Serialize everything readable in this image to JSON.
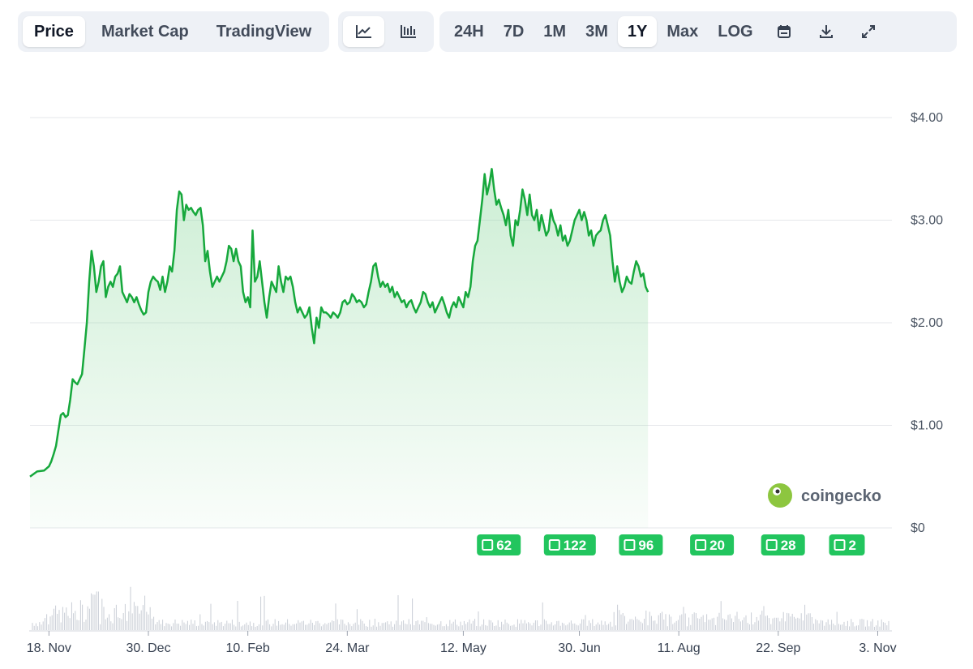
{
  "toolbar": {
    "view_tabs": [
      "Price",
      "Market Cap",
      "TradingView"
    ],
    "active_view": "Price",
    "chart_type_icons": [
      "line-chart-icon",
      "candlestick-chart-icon"
    ],
    "active_chart_type": "line-chart-icon",
    "ranges": [
      "24H",
      "7D",
      "1M",
      "3M",
      "1Y",
      "Max",
      "LOG"
    ],
    "active_range": "1Y",
    "tool_icons": [
      "calendar-icon",
      "download-icon",
      "fullscreen-icon"
    ]
  },
  "watermark": {
    "text": "coingecko",
    "icon": "gecko-logo-icon"
  },
  "colors": {
    "line": "#16a83c",
    "fill": "#8fd9a0",
    "badge": "#22c55e",
    "grid": "#e5e7eb"
  },
  "chart_data": {
    "type": "area",
    "y_ticks": [
      "$0",
      "$1.00",
      "$2.00",
      "$3.00",
      "$4.00"
    ],
    "y_tick_values": [
      0,
      1,
      2,
      3,
      4
    ],
    "ylim": [
      0,
      4
    ],
    "x_tick_labels": [
      "18. Nov",
      "30. Dec",
      "10. Feb",
      "24. Mar",
      "12. May",
      "30. Jun",
      "11. Aug",
      "22. Sep",
      "3. Nov"
    ],
    "x_tick_days": [
      8,
      50,
      92,
      134,
      183,
      232,
      274,
      316,
      358
    ],
    "x_domain_days": [
      0,
      364
    ],
    "price_series": [
      [
        0,
        0.5
      ],
      [
        3,
        0.55
      ],
      [
        6,
        0.56
      ],
      [
        8,
        0.6
      ],
      [
        9,
        0.65
      ],
      [
        10,
        0.72
      ],
      [
        11,
        0.8
      ],
      [
        12,
        0.95
      ],
      [
        13,
        1.1
      ],
      [
        14,
        1.12
      ],
      [
        15,
        1.08
      ],
      [
        16,
        1.1
      ],
      [
        17,
        1.25
      ],
      [
        18,
        1.45
      ],
      [
        19,
        1.42
      ],
      [
        20,
        1.4
      ],
      [
        21,
        1.45
      ],
      [
        22,
        1.5
      ],
      [
        23,
        1.75
      ],
      [
        24,
        2.0
      ],
      [
        25,
        2.4
      ],
      [
        26,
        2.7
      ],
      [
        27,
        2.55
      ],
      [
        28,
        2.3
      ],
      [
        29,
        2.4
      ],
      [
        30,
        2.55
      ],
      [
        31,
        2.6
      ],
      [
        32,
        2.25
      ],
      [
        33,
        2.35
      ],
      [
        34,
        2.4
      ],
      [
        35,
        2.35
      ],
      [
        36,
        2.45
      ],
      [
        37,
        2.48
      ],
      [
        38,
        2.55
      ],
      [
        39,
        2.3
      ],
      [
        40,
        2.25
      ],
      [
        41,
        2.2
      ],
      [
        42,
        2.28
      ],
      [
        43,
        2.25
      ],
      [
        44,
        2.2
      ],
      [
        45,
        2.25
      ],
      [
        46,
        2.18
      ],
      [
        47,
        2.12
      ],
      [
        48,
        2.08
      ],
      [
        49,
        2.1
      ],
      [
        50,
        2.3
      ],
      [
        51,
        2.4
      ],
      [
        52,
        2.45
      ],
      [
        53,
        2.42
      ],
      [
        54,
        2.4
      ],
      [
        55,
        2.32
      ],
      [
        56,
        2.45
      ],
      [
        57,
        2.3
      ],
      [
        58,
        2.4
      ],
      [
        59,
        2.55
      ],
      [
        60,
        2.5
      ],
      [
        61,
        2.7
      ],
      [
        62,
        3.1
      ],
      [
        63,
        3.28
      ],
      [
        64,
        3.25
      ],
      [
        65,
        3.0
      ],
      [
        66,
        3.15
      ],
      [
        67,
        3.1
      ],
      [
        68,
        3.12
      ],
      [
        69,
        3.08
      ],
      [
        70,
        3.05
      ],
      [
        71,
        3.1
      ],
      [
        72,
        3.12
      ],
      [
        73,
        2.95
      ],
      [
        74,
        2.6
      ],
      [
        75,
        2.7
      ],
      [
        76,
        2.5
      ],
      [
        77,
        2.35
      ],
      [
        78,
        2.4
      ],
      [
        79,
        2.45
      ],
      [
        80,
        2.4
      ],
      [
        81,
        2.45
      ],
      [
        82,
        2.5
      ],
      [
        83,
        2.6
      ],
      [
        84,
        2.75
      ],
      [
        85,
        2.72
      ],
      [
        86,
        2.6
      ],
      [
        87,
        2.72
      ],
      [
        88,
        2.6
      ],
      [
        89,
        2.55
      ],
      [
        90,
        2.3
      ],
      [
        91,
        2.2
      ],
      [
        92,
        2.25
      ],
      [
        93,
        2.15
      ],
      [
        94,
        2.9
      ],
      [
        95,
        2.4
      ],
      [
        96,
        2.45
      ],
      [
        97,
        2.6
      ],
      [
        98,
        2.4
      ],
      [
        99,
        2.2
      ],
      [
        100,
        2.05
      ],
      [
        101,
        2.25
      ],
      [
        102,
        2.4
      ],
      [
        103,
        2.35
      ],
      [
        104,
        2.3
      ],
      [
        105,
        2.55
      ],
      [
        106,
        2.4
      ],
      [
        107,
        2.3
      ],
      [
        108,
        2.45
      ],
      [
        109,
        2.42
      ],
      [
        110,
        2.45
      ],
      [
        111,
        2.35
      ],
      [
        112,
        2.2
      ],
      [
        113,
        2.1
      ],
      [
        114,
        2.15
      ],
      [
        115,
        2.1
      ],
      [
        116,
        2.05
      ],
      [
        117,
        2.08
      ],
      [
        118,
        2.15
      ],
      [
        119,
        1.95
      ],
      [
        120,
        1.8
      ],
      [
        121,
        2.05
      ],
      [
        122,
        1.95
      ],
      [
        123,
        2.15
      ],
      [
        124,
        2.1
      ],
      [
        125,
        2.1
      ],
      [
        126,
        2.08
      ],
      [
        127,
        2.05
      ],
      [
        128,
        2.1
      ],
      [
        129,
        2.08
      ],
      [
        130,
        2.05
      ],
      [
        131,
        2.1
      ],
      [
        132,
        2.2
      ],
      [
        133,
        2.22
      ],
      [
        134,
        2.18
      ],
      [
        135,
        2.2
      ],
      [
        136,
        2.28
      ],
      [
        137,
        2.25
      ],
      [
        138,
        2.2
      ],
      [
        139,
        2.22
      ],
      [
        140,
        2.2
      ],
      [
        141,
        2.15
      ],
      [
        142,
        2.18
      ],
      [
        143,
        2.3
      ],
      [
        144,
        2.4
      ],
      [
        145,
        2.55
      ],
      [
        146,
        2.58
      ],
      [
        147,
        2.45
      ],
      [
        148,
        2.35
      ],
      [
        149,
        2.4
      ],
      [
        150,
        2.35
      ],
      [
        151,
        2.38
      ],
      [
        152,
        2.3
      ],
      [
        153,
        2.35
      ],
      [
        154,
        2.25
      ],
      [
        155,
        2.3
      ],
      [
        156,
        2.25
      ],
      [
        157,
        2.2
      ],
      [
        158,
        2.22
      ],
      [
        159,
        2.15
      ],
      [
        160,
        2.2
      ],
      [
        161,
        2.22
      ],
      [
        162,
        2.15
      ],
      [
        163,
        2.1
      ],
      [
        164,
        2.15
      ],
      [
        165,
        2.2
      ],
      [
        166,
        2.3
      ],
      [
        167,
        2.28
      ],
      [
        168,
        2.2
      ],
      [
        169,
        2.15
      ],
      [
        170,
        2.2
      ],
      [
        171,
        2.1
      ],
      [
        172,
        2.15
      ],
      [
        173,
        2.2
      ],
      [
        174,
        2.25
      ],
      [
        175,
        2.18
      ],
      [
        176,
        2.1
      ],
      [
        177,
        2.05
      ],
      [
        178,
        2.15
      ],
      [
        179,
        2.2
      ],
      [
        180,
        2.15
      ],
      [
        181,
        2.25
      ],
      [
        182,
        2.2
      ],
      [
        183,
        2.15
      ],
      [
        184,
        2.3
      ],
      [
        185,
        2.25
      ],
      [
        186,
        2.35
      ],
      [
        187,
        2.6
      ],
      [
        188,
        2.75
      ],
      [
        189,
        2.8
      ],
      [
        190,
        3.0
      ],
      [
        191,
        3.2
      ],
      [
        192,
        3.45
      ],
      [
        193,
        3.25
      ],
      [
        194,
        3.35
      ],
      [
        195,
        3.5
      ],
      [
        196,
        3.3
      ],
      [
        197,
        3.15
      ],
      [
        198,
        3.2
      ],
      [
        199,
        3.12
      ],
      [
        200,
        3.05
      ],
      [
        201,
        2.95
      ],
      [
        202,
        3.1
      ],
      [
        203,
        2.85
      ],
      [
        204,
        2.75
      ],
      [
        205,
        3.0
      ],
      [
        206,
        2.95
      ],
      [
        207,
        3.1
      ],
      [
        208,
        3.3
      ],
      [
        209,
        3.2
      ],
      [
        210,
        3.05
      ],
      [
        211,
        3.25
      ],
      [
        212,
        3.05
      ],
      [
        213,
        3.0
      ],
      [
        214,
        3.1
      ],
      [
        215,
        2.9
      ],
      [
        216,
        3.05
      ],
      [
        217,
        2.95
      ],
      [
        218,
        2.85
      ],
      [
        219,
        2.9
      ],
      [
        220,
        3.1
      ],
      [
        221,
        3.0
      ],
      [
        222,
        2.95
      ],
      [
        223,
        2.85
      ],
      [
        224,
        2.95
      ],
      [
        225,
        2.8
      ],
      [
        226,
        2.85
      ],
      [
        227,
        2.75
      ],
      [
        228,
        2.8
      ],
      [
        229,
        2.9
      ],
      [
        230,
        3.0
      ],
      [
        231,
        3.05
      ],
      [
        232,
        3.1
      ],
      [
        233,
        3.0
      ],
      [
        234,
        3.08
      ],
      [
        235,
        3.0
      ],
      [
        236,
        2.85
      ],
      [
        237,
        2.9
      ],
      [
        238,
        2.75
      ],
      [
        239,
        2.85
      ],
      [
        240,
        2.88
      ],
      [
        241,
        2.9
      ],
      [
        242,
        3.0
      ],
      [
        243,
        3.05
      ],
      [
        244,
        2.95
      ],
      [
        245,
        2.85
      ],
      [
        246,
        2.6
      ],
      [
        247,
        2.4
      ],
      [
        248,
        2.55
      ],
      [
        249,
        2.4
      ],
      [
        250,
        2.3
      ],
      [
        251,
        2.35
      ],
      [
        252,
        2.45
      ],
      [
        253,
        2.4
      ],
      [
        254,
        2.38
      ],
      [
        255,
        2.5
      ],
      [
        256,
        2.6
      ],
      [
        257,
        2.55
      ],
      [
        258,
        2.45
      ],
      [
        259,
        2.48
      ],
      [
        260,
        2.35
      ],
      [
        261,
        2.3
      ]
    ]
  },
  "news_badges": [
    {
      "day": 198,
      "count": "62"
    },
    {
      "day": 228,
      "count": "122"
    },
    {
      "day": 258,
      "count": "96"
    },
    {
      "day": 288,
      "count": "20"
    },
    {
      "day": 318,
      "count": "28"
    },
    {
      "day": 345,
      "count": "2"
    }
  ]
}
